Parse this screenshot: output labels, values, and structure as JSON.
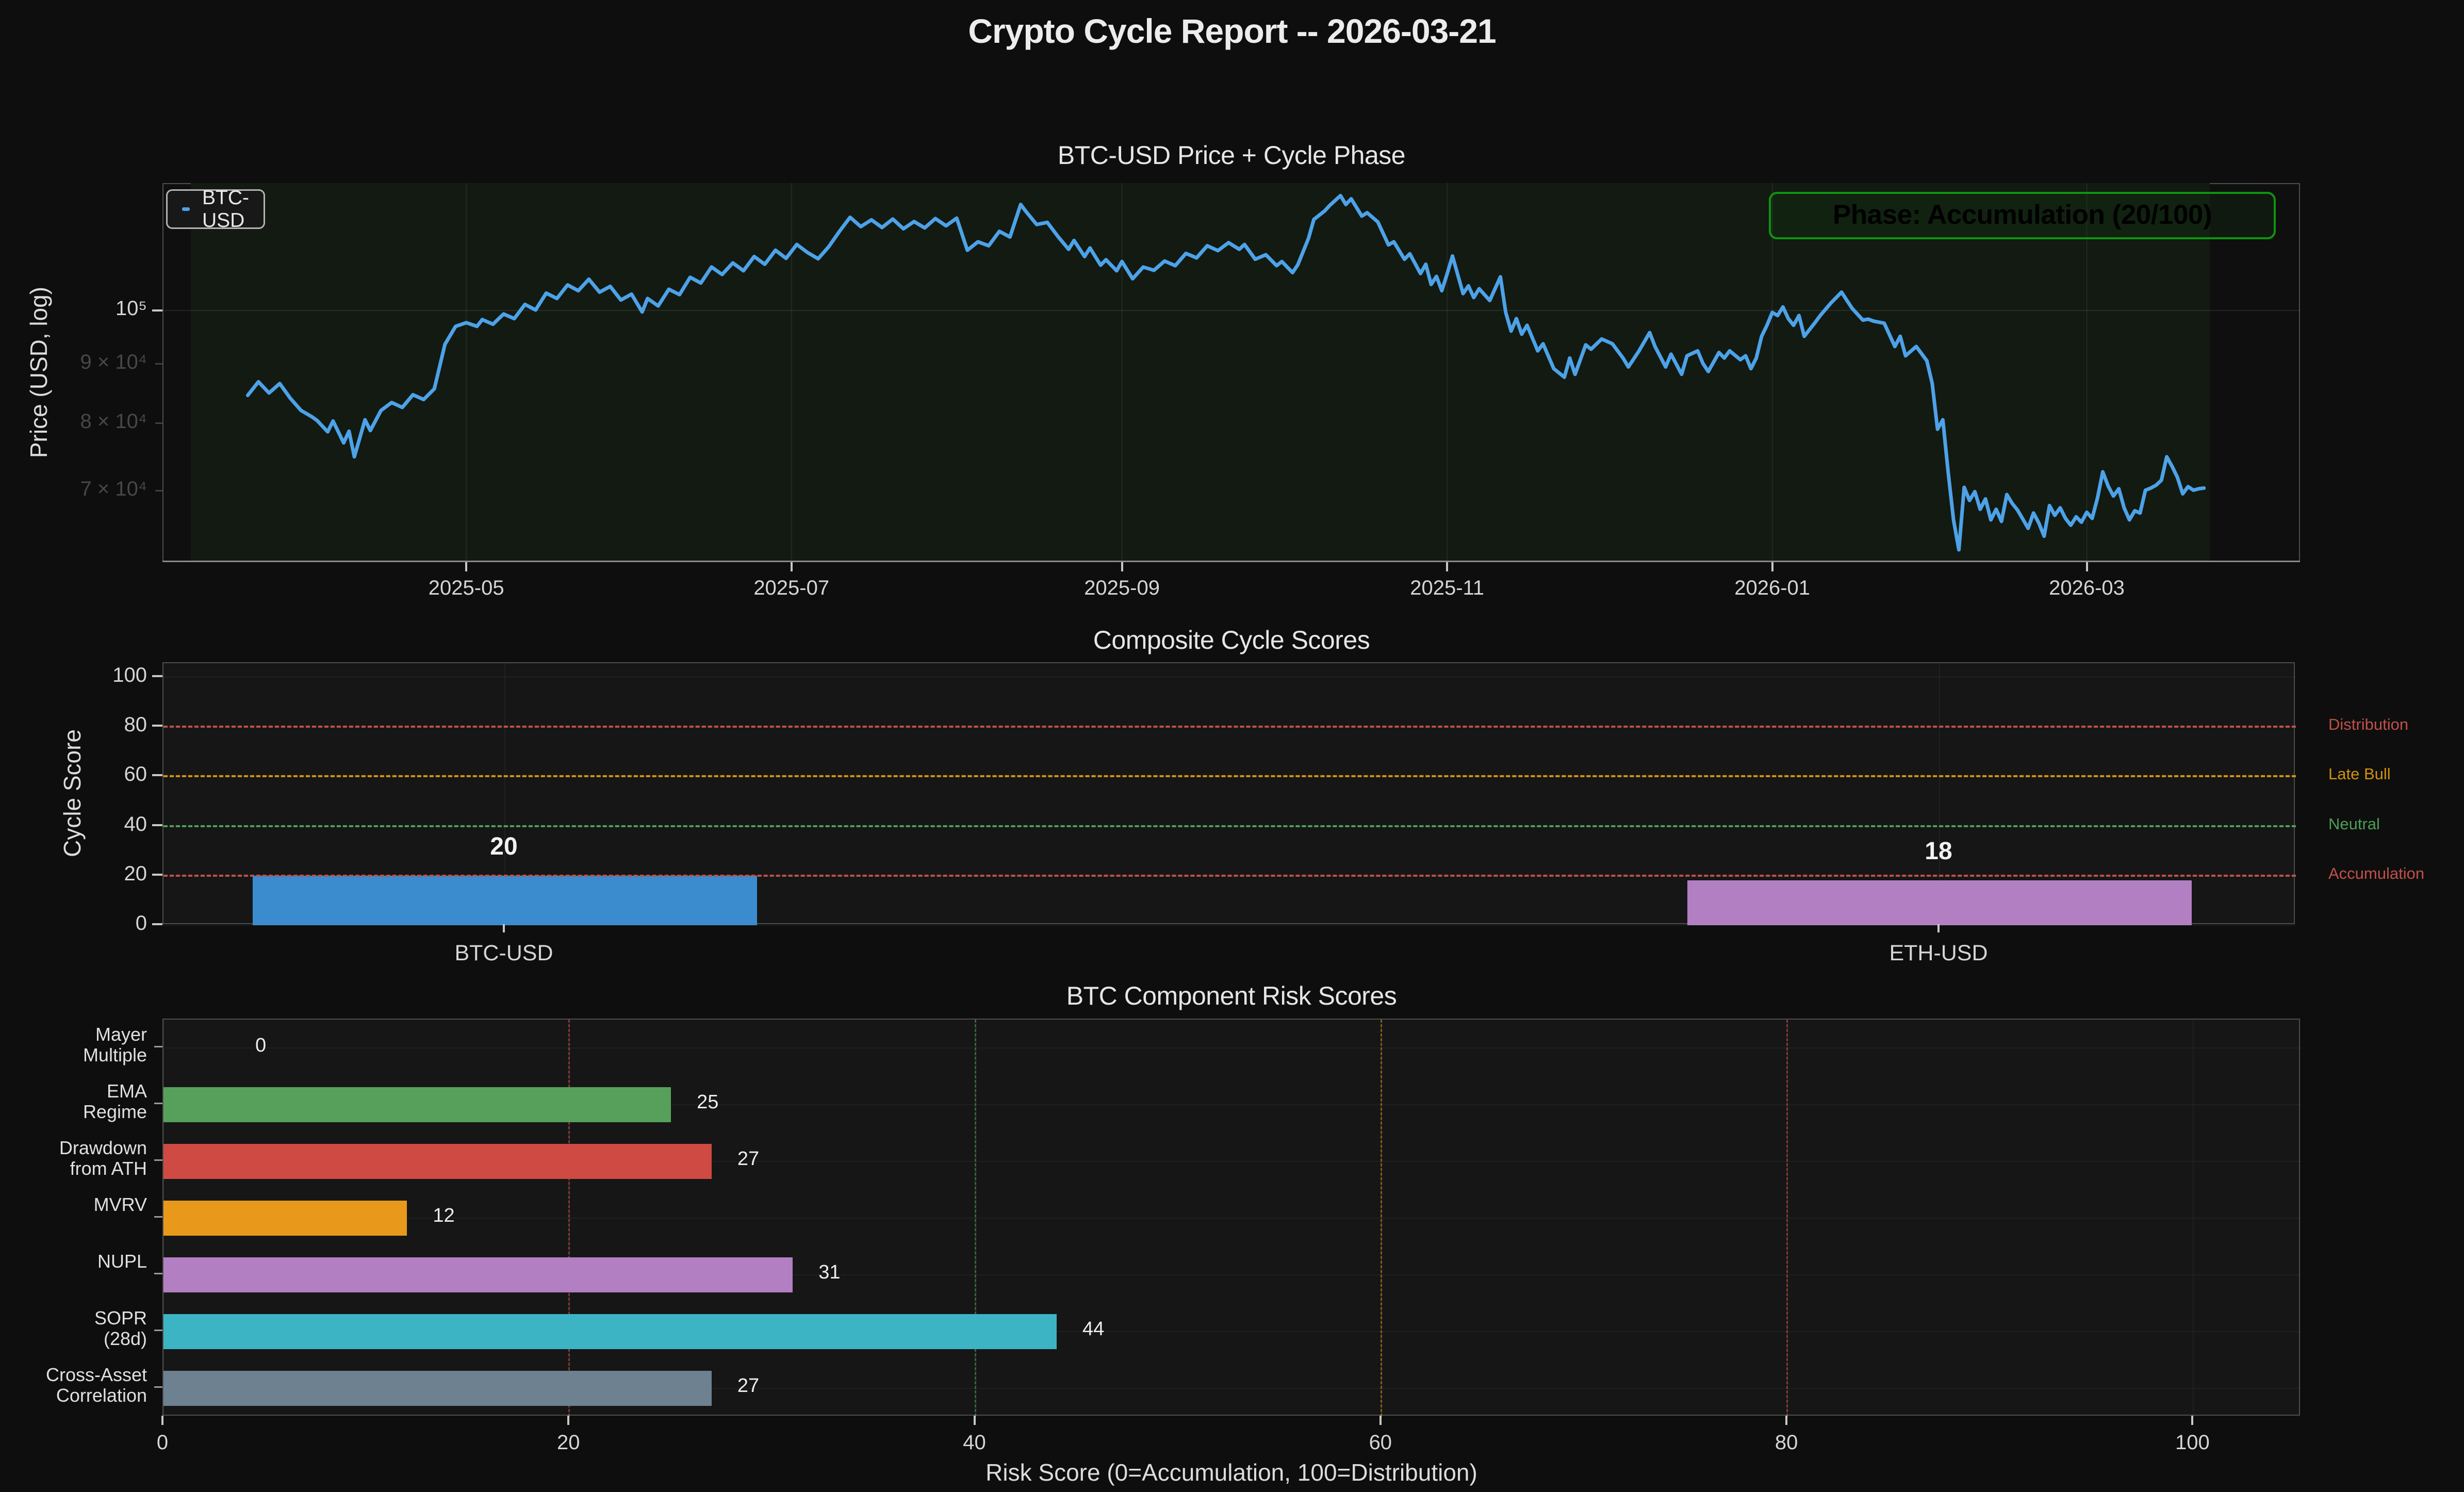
{
  "title": "Crypto Cycle Report -- 2026-03-21",
  "chart_data": [
    {
      "type": "line",
      "id": "btc_price",
      "title": "BTC-USD Price + Cycle Phase",
      "ylabel": "Price (USD, log)",
      "yscale": "log",
      "grid": true,
      "annotation": {
        "text": "Phase: Accumulation (20/100)",
        "color": "#0f940f"
      },
      "legend": {
        "position": "upper-left",
        "entries": [
          {
            "label": "BTC-USD",
            "color": "#4da2e8"
          }
        ]
      },
      "x_axis": {
        "day0_date": "2025-03-05",
        "days_total": 401,
        "ticks": [
          {
            "day": 57,
            "label": "2025-05"
          },
          {
            "day": 118,
            "label": "2025-07"
          },
          {
            "day": 180,
            "label": "2025-09"
          },
          {
            "day": 241,
            "label": "2025-11"
          },
          {
            "day": 302,
            "label": "2026-01"
          },
          {
            "day": 361,
            "label": "2026-03"
          }
        ]
      },
      "y_axis": {
        "ylim_usd": [
          61000,
          128800
        ],
        "major_ticks": [
          {
            "value": 100000,
            "label": "10⁵"
          }
        ],
        "minor_ticks": [
          {
            "value": 90000,
            "label": "9 × 10⁴"
          },
          {
            "value": 80000,
            "label": "8 × 10⁴"
          },
          {
            "value": 70000,
            "label": "7 × 10⁴"
          }
        ]
      },
      "series": {
        "name": "BTC-USD",
        "color": "#4da2e8",
        "units": "thousand USD",
        "points_day_price": [
          [
            16,
            84.5
          ],
          [
            18,
            86.8
          ],
          [
            20,
            84.9
          ],
          [
            22,
            86.5
          ],
          [
            24,
            84.0
          ],
          [
            26,
            82.0
          ],
          [
            28,
            81.0
          ],
          [
            29,
            80.4
          ],
          [
            31,
            78.6
          ],
          [
            32,
            80.3
          ],
          [
            34,
            76.9
          ],
          [
            35,
            78.7
          ],
          [
            36,
            74.8
          ],
          [
            38,
            80.5
          ],
          [
            39,
            78.8
          ],
          [
            41,
            82.0
          ],
          [
            43,
            83.3
          ],
          [
            45,
            82.5
          ],
          [
            47,
            84.6
          ],
          [
            49,
            83.8
          ],
          [
            51,
            85.6
          ],
          [
            53,
            93.5
          ],
          [
            55,
            96.9
          ],
          [
            57,
            97.6
          ],
          [
            59,
            96.9
          ],
          [
            60,
            98.2
          ],
          [
            62,
            97.3
          ],
          [
            64,
            99.3
          ],
          [
            66,
            98.4
          ],
          [
            68,
            101.2
          ],
          [
            70,
            100.1
          ],
          [
            72,
            103.5
          ],
          [
            74,
            102.4
          ],
          [
            76,
            105.2
          ],
          [
            78,
            104.0
          ],
          [
            80,
            106.4
          ],
          [
            82,
            103.7
          ],
          [
            84,
            104.9
          ],
          [
            86,
            102.1
          ],
          [
            88,
            103.3
          ],
          [
            90,
            99.7
          ],
          [
            91,
            102.4
          ],
          [
            93,
            100.9
          ],
          [
            95,
            104.3
          ],
          [
            97,
            103.2
          ],
          [
            99,
            106.8
          ],
          [
            101,
            105.6
          ],
          [
            103,
            109.0
          ],
          [
            105,
            107.4
          ],
          [
            107,
            109.9
          ],
          [
            109,
            108.2
          ],
          [
            111,
            111.3
          ],
          [
            113,
            109.6
          ],
          [
            115,
            112.7
          ],
          [
            117,
            110.9
          ],
          [
            119,
            114.0
          ],
          [
            121,
            112.2
          ],
          [
            123,
            110.8
          ],
          [
            125,
            113.5
          ],
          [
            127,
            117.0
          ],
          [
            129,
            120.3
          ],
          [
            131,
            118.1
          ],
          [
            133,
            119.7
          ],
          [
            135,
            117.9
          ],
          [
            137,
            119.9
          ],
          [
            139,
            117.6
          ],
          [
            141,
            119.3
          ],
          [
            143,
            117.8
          ],
          [
            145,
            120.0
          ],
          [
            147,
            118.3
          ],
          [
            149,
            120.1
          ],
          [
            151,
            112.7
          ],
          [
            153,
            114.6
          ],
          [
            155,
            113.7
          ],
          [
            157,
            117.0
          ],
          [
            159,
            115.7
          ],
          [
            161,
            123.4
          ],
          [
            162,
            121.7
          ],
          [
            164,
            118.6
          ],
          [
            166,
            119.1
          ],
          [
            168,
            115.8
          ],
          [
            170,
            112.9
          ],
          [
            171,
            114.9
          ],
          [
            173,
            111.3
          ],
          [
            174,
            113.2
          ],
          [
            176,
            109.4
          ],
          [
            177,
            110.6
          ],
          [
            179,
            108.2
          ],
          [
            180,
            110.2
          ],
          [
            182,
            106.5
          ],
          [
            184,
            109.0
          ],
          [
            186,
            108.3
          ],
          [
            188,
            110.3
          ],
          [
            190,
            109.3
          ],
          [
            192,
            112.0
          ],
          [
            194,
            111.0
          ],
          [
            196,
            113.7
          ],
          [
            198,
            112.6
          ],
          [
            200,
            114.4
          ],
          [
            202,
            112.9
          ],
          [
            203,
            114.0
          ],
          [
            205,
            110.7
          ],
          [
            207,
            111.7
          ],
          [
            209,
            109.3
          ],
          [
            210,
            110.2
          ],
          [
            212,
            107.8
          ],
          [
            213,
            109.5
          ],
          [
            215,
            115.4
          ],
          [
            216,
            119.8
          ],
          [
            218,
            121.8
          ],
          [
            219,
            123.2
          ],
          [
            221,
            125.6
          ],
          [
            222,
            123.4
          ],
          [
            223,
            124.8
          ],
          [
            225,
            120.6
          ],
          [
            226,
            121.4
          ],
          [
            228,
            119.2
          ],
          [
            230,
            113.9
          ],
          [
            231,
            114.6
          ],
          [
            233,
            110.7
          ],
          [
            234,
            111.9
          ],
          [
            236,
            107.6
          ],
          [
            237,
            109.6
          ],
          [
            238,
            105.3
          ],
          [
            239,
            107.0
          ],
          [
            240,
            104.0
          ],
          [
            241,
            107.5
          ],
          [
            242,
            111.4
          ],
          [
            244,
            103.4
          ],
          [
            245,
            105.0
          ],
          [
            246,
            102.6
          ],
          [
            247,
            104.4
          ],
          [
            249,
            102.0
          ],
          [
            251,
            106.9
          ],
          [
            252,
            99.6
          ],
          [
            253,
            96.0
          ],
          [
            254,
            98.4
          ],
          [
            255,
            95.4
          ],
          [
            256,
            97.1
          ],
          [
            258,
            92.3
          ],
          [
            259,
            93.6
          ],
          [
            261,
            89.1
          ],
          [
            263,
            87.6
          ],
          [
            264,
            91.0
          ],
          [
            265,
            88.1
          ],
          [
            267,
            93.4
          ],
          [
            268,
            92.6
          ],
          [
            270,
            94.5
          ],
          [
            272,
            93.6
          ],
          [
            274,
            91.0
          ],
          [
            275,
            89.4
          ],
          [
            277,
            92.3
          ],
          [
            279,
            95.7
          ],
          [
            280,
            93.1
          ],
          [
            282,
            89.4
          ],
          [
            283,
            91.7
          ],
          [
            285,
            88.1
          ],
          [
            286,
            91.4
          ],
          [
            288,
            92.3
          ],
          [
            289,
            90.0
          ],
          [
            290,
            88.6
          ],
          [
            292,
            92.0
          ],
          [
            293,
            91.0
          ],
          [
            294,
            92.3
          ],
          [
            296,
            90.7
          ],
          [
            297,
            91.4
          ],
          [
            298,
            89.1
          ],
          [
            299,
            91.0
          ],
          [
            300,
            95.0
          ],
          [
            301,
            97.1
          ],
          [
            302,
            99.6
          ],
          [
            303,
            99.0
          ],
          [
            304,
            100.7
          ],
          [
            305,
            98.4
          ],
          [
            306,
            97.1
          ],
          [
            307,
            99.0
          ],
          [
            308,
            95.0
          ],
          [
            310,
            97.6
          ],
          [
            311,
            99.0
          ],
          [
            313,
            101.5
          ],
          [
            315,
            103.7
          ],
          [
            316,
            102.0
          ],
          [
            317,
            100.4
          ],
          [
            319,
            98.1
          ],
          [
            320,
            98.3
          ],
          [
            321,
            97.9
          ],
          [
            323,
            97.5
          ],
          [
            325,
            93.1
          ],
          [
            326,
            95.0
          ],
          [
            327,
            91.4
          ],
          [
            329,
            93.1
          ],
          [
            331,
            90.5
          ],
          [
            332,
            86.5
          ],
          [
            333,
            79.0
          ],
          [
            334,
            80.5
          ],
          [
            335,
            72.5
          ],
          [
            336,
            66.0
          ],
          [
            337,
            62.2
          ],
          [
            338,
            70.4
          ],
          [
            339,
            68.6
          ],
          [
            340,
            69.8
          ],
          [
            341,
            67.4
          ],
          [
            342,
            68.8
          ],
          [
            343,
            66.0
          ],
          [
            344,
            67.4
          ],
          [
            345,
            65.8
          ],
          [
            346,
            69.4
          ],
          [
            347,
            68.2
          ],
          [
            348,
            67.3
          ],
          [
            349,
            66.1
          ],
          [
            350,
            64.9
          ],
          [
            351,
            66.9
          ],
          [
            352,
            65.6
          ],
          [
            353,
            63.9
          ],
          [
            354,
            67.9
          ],
          [
            355,
            66.6
          ],
          [
            356,
            67.6
          ],
          [
            357,
            66.2
          ],
          [
            358,
            65.3
          ],
          [
            359,
            66.4
          ],
          [
            360,
            65.7
          ],
          [
            361,
            67.0
          ],
          [
            362,
            66.2
          ],
          [
            363,
            68.9
          ],
          [
            364,
            72.6
          ],
          [
            365,
            70.6
          ],
          [
            366,
            69.2
          ],
          [
            367,
            70.2
          ],
          [
            368,
            67.6
          ],
          [
            369,
            66.0
          ],
          [
            370,
            67.2
          ],
          [
            371,
            66.9
          ],
          [
            372,
            70.0
          ],
          [
            373,
            70.3
          ],
          [
            374,
            70.7
          ],
          [
            375,
            71.4
          ],
          [
            376,
            74.8
          ],
          [
            377,
            73.4
          ],
          [
            378,
            71.8
          ],
          [
            379,
            69.5
          ],
          [
            380,
            70.5
          ],
          [
            381,
            70.0
          ],
          [
            382,
            70.2
          ],
          [
            383,
            70.3
          ]
        ]
      }
    },
    {
      "type": "bar",
      "id": "composite_scores",
      "title": "Composite Cycle Scores",
      "ylabel": "Cycle Score",
      "categories": [
        "BTC-USD",
        "ETH-USD"
      ],
      "values": [
        20,
        18
      ],
      "bar_colors": [
        "#3a8cce",
        "#b27fc3"
      ],
      "value_labels": [
        "20",
        "18"
      ],
      "y_ticks": [
        0,
        20,
        40,
        60,
        80,
        100
      ],
      "ylim": [
        0,
        105.6
      ],
      "thresholds": [
        {
          "value": 80,
          "label": "Distribution",
          "color": "#c0504a"
        },
        {
          "value": 60,
          "label": "Late Bull",
          "color": "#d1920e"
        },
        {
          "value": 40,
          "label": "Neutral",
          "color": "#4d9e58"
        },
        {
          "value": 20,
          "label": "Accumulation",
          "color": "#c0504a"
        }
      ]
    },
    {
      "type": "bar",
      "id": "btc_component_risk",
      "orientation": "horizontal",
      "title": "BTC Component Risk Scores",
      "xlabel": "Risk Score (0=Accumulation, 100=Distribution)",
      "categories": [
        "Mayer\nMultiple",
        "EMA\nRegime",
        "Drawdown\nfrom ATH",
        "MVRV",
        "NUPL",
        "SOPR\n(28d)",
        "Cross-Asset\nCorrelation"
      ],
      "values": [
        0,
        25,
        27,
        12,
        31,
        44,
        27
      ],
      "value_labels": [
        "0",
        "25",
        "27",
        "12",
        "31",
        "44",
        "27"
      ],
      "bar_colors": [
        "#3a8cce",
        "#57a05b",
        "#cf4a42",
        "#e8991c",
        "#b27fc3",
        "#3db4c3",
        "#6d8191"
      ],
      "x_ticks": [
        0,
        20,
        40,
        60,
        80,
        100
      ],
      "xlim": [
        0,
        105.3
      ],
      "guides": [
        {
          "value": 20,
          "color": "rgba(192,80,74,0.6)"
        },
        {
          "value": 40,
          "color": "rgba(77,158,88,0.55)"
        },
        {
          "value": 60,
          "color": "rgba(209,146,14,0.55)"
        },
        {
          "value": 80,
          "color": "rgba(192,80,74,0.6)"
        }
      ]
    }
  ]
}
